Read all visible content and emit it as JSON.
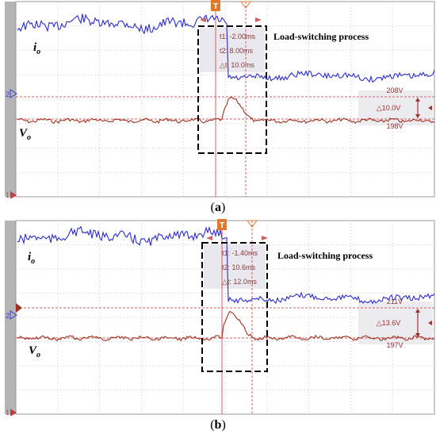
{
  "chart_data": [
    {
      "type": "line",
      "panel_label": "a",
      "annotation": "Load-switching process",
      "cursors": {
        "t1": "t1: -2.00ms",
        "t2": "t2: 8.00ms",
        "dt": "△t: 10.0ms"
      },
      "levels": {
        "upper": "208V",
        "lower": "198V",
        "delta": "△10.0V"
      },
      "series": [
        {
          "name": "io",
          "color": "#2b2bd6"
        },
        {
          "name": "Vo",
          "color": "#a0301f"
        }
      ],
      "colors": {
        "io": "#2b2bd6",
        "Vo": "#a0301f",
        "marker": "#e07a2a",
        "cursor": "#d06060"
      }
    },
    {
      "type": "line",
      "panel_label": "b",
      "annotation": "Load-switching process",
      "cursors": {
        "t1": "t1: -1.40ms",
        "t2": "t2: 10.6ms",
        "dt": "△t: 12.0ms"
      },
      "levels": {
        "upper": "211V",
        "lower": "197V",
        "delta": "△13.6V"
      },
      "series": [
        {
          "name": "io",
          "color": "#2b2bd6"
        },
        {
          "name": "Vo",
          "color": "#a0301f"
        }
      ],
      "colors": {
        "io": "#2b2bd6",
        "Vo": "#a0301f",
        "marker": "#e07a2a",
        "cursor": "#d06060"
      }
    }
  ],
  "labels": {
    "io_main": "i",
    "io_sub": "o",
    "vo_main": "V",
    "vo_sub": "o",
    "ch1": "1",
    "ch2": "2",
    "trigger": "T"
  }
}
